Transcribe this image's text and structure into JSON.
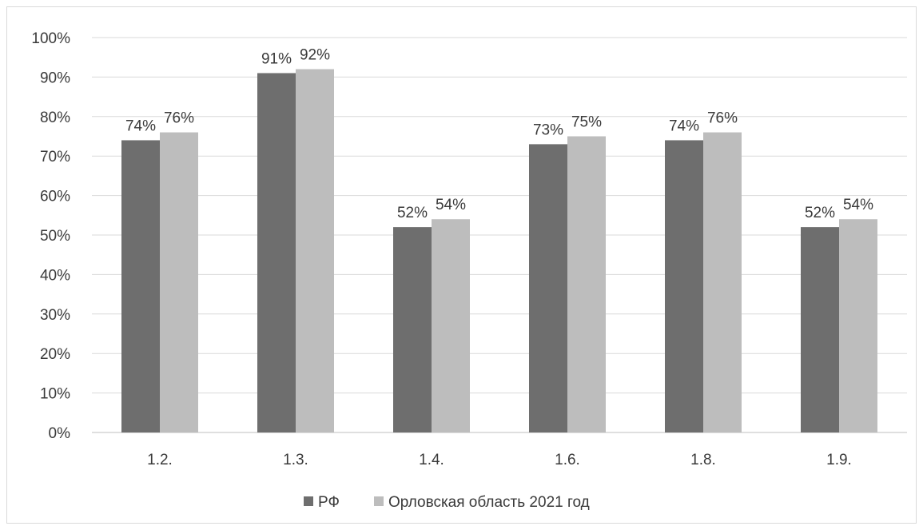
{
  "chart_data": {
    "type": "bar",
    "categories": [
      "1.2.",
      "1.3.",
      "1.4.",
      "1.6.",
      "1.8.",
      "1.9."
    ],
    "series": [
      {
        "name": "РФ",
        "values": [
          74,
          91,
          52,
          73,
          74,
          52
        ],
        "labels": [
          "74%",
          "91%",
          "52%",
          "73%",
          "74%",
          "52%"
        ],
        "color": "#6e6e6e"
      },
      {
        "name": "Орловская область 2021 год",
        "values": [
          76,
          92,
          54,
          75,
          76,
          54
        ],
        "labels": [
          "76%",
          "92%",
          "54%",
          "75%",
          "76%",
          "54%"
        ],
        "color": "#bdbdbd"
      }
    ],
    "ylim": [
      0,
      100
    ],
    "yticks": [
      "0%",
      "10%",
      "20%",
      "30%",
      "40%",
      "50%",
      "60%",
      "70%",
      "80%",
      "90%",
      "100%"
    ],
    "grid": true,
    "legend": "bottom"
  }
}
